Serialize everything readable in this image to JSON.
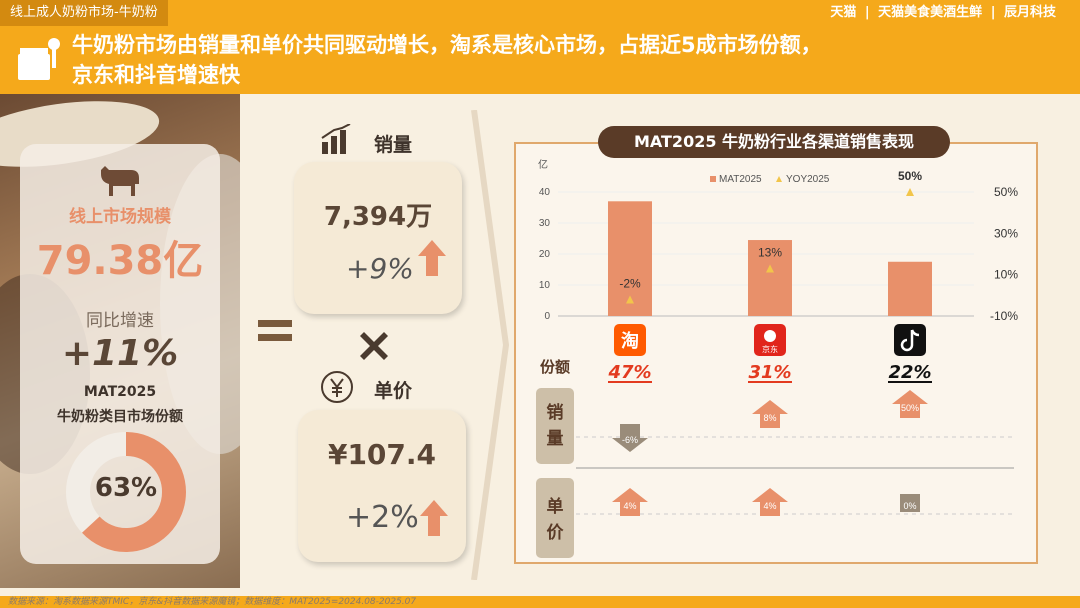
{
  "top": {
    "tag": "线上成人奶粉市场-牛奶粉",
    "brands": [
      "天猫",
      "天猫美食美酒生鲜",
      "辰月科技"
    ],
    "headline_line1": "牛奶粉市场由销量和单价共同驱动增长，淘系是核心市场，占据近5成市场份额，",
    "headline_line2": "京东和抖音增速快"
  },
  "left": {
    "scale_label": "线上市场规模",
    "scale_value": "79.38亿",
    "yoy_label": "同比增速",
    "yoy_value": "+11%",
    "mat_label": "MAT2025",
    "share_label": "牛奶粉类目市场份额",
    "share_value": "63%",
    "share_fraction": 0.63
  },
  "middle": {
    "volume_label": "销量",
    "volume_value": "7,394万",
    "volume_yoy": "+9%",
    "price_label": "单价",
    "price_value": "¥107.4",
    "price_yoy": "+2%"
  },
  "chart_title": "MAT2025 牛奶粉行业各渠道销售表现",
  "row_labels": {
    "share": "份额",
    "volume": "销量",
    "price": "单价"
  },
  "channel_icons": [
    "taobao-icon",
    "jd-icon",
    "douyin-icon"
  ],
  "chart_data": {
    "type": "bar",
    "categories": [
      "淘",
      "京东",
      "抖音"
    ],
    "y_unit": "亿",
    "ylim": [
      0,
      40
    ],
    "yticks": [
      0,
      10,
      20,
      30,
      40
    ],
    "y2lim": [
      -10,
      50
    ],
    "y2ticks": [
      "-10%",
      "10%",
      "30%",
      "50%"
    ],
    "legend": [
      "MAT2025",
      "YOY2025"
    ],
    "series": [
      {
        "name": "MAT2025",
        "values": [
          37,
          24.5,
          17.5
        ]
      },
      {
        "name": "YOY2025",
        "values": [
          -2,
          13,
          50
        ],
        "labels": [
          "-2%",
          "13%",
          "50%"
        ]
      }
    ],
    "share": [
      "47%",
      "31%",
      "22%"
    ],
    "volume_yoy": [
      "-6%",
      "8%",
      "50%"
    ],
    "volume_direction": [
      "down",
      "up",
      "up"
    ],
    "price_yoy": [
      "4%",
      "4%",
      "0%"
    ],
    "price_direction": [
      "up",
      "up",
      "flat"
    ]
  },
  "colors": {
    "orange": "#f5a91b",
    "bar": "#e8906a",
    "triangle": "#f2c54a",
    "brown": "#5a3b27",
    "down": "#9a8c7a",
    "red_share": "#e33a1f"
  },
  "footer": {
    "source": "数据来源：淘系数据来源TMIC，京东&抖音数据来源魔镜；数据维度：MAT2025=2024.08-2025.07"
  }
}
